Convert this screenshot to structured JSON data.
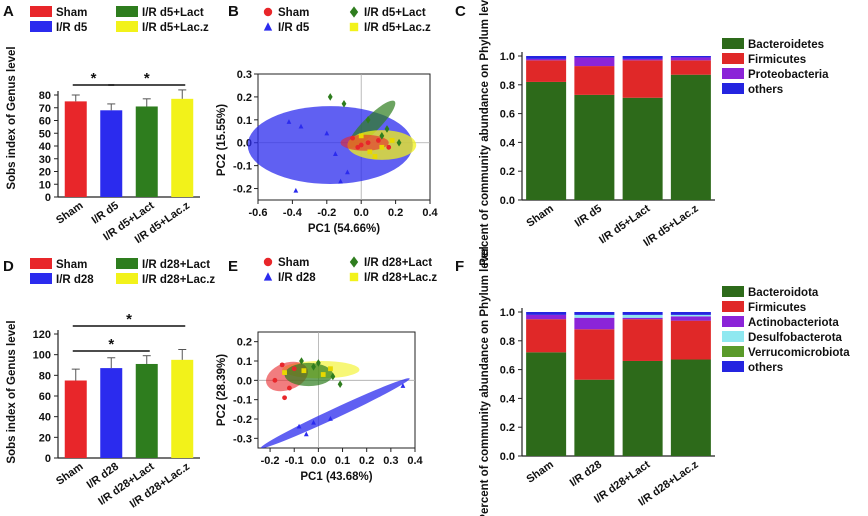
{
  "colors": {
    "sham": "#e8262a",
    "ir": "#2b2bee",
    "lact": "#2e7d1e",
    "lacz": "#f2f21a",
    "bacteroidetes": "#2d6a1a",
    "firmicutes": "#e02828",
    "proteobacteria": "#8b24d8",
    "others": "#2424e0",
    "desulfobacterota": "#8fe8f0",
    "verrucomicrobiota": "#5a9a2a"
  },
  "chart_data": [
    {
      "id": "A",
      "panel_label": "A",
      "type": "bar",
      "ylabel": "Sobs index of Genus level",
      "ylim": [
        0,
        80
      ],
      "yticks": [
        "0",
        "10",
        "20",
        "30",
        "40",
        "50",
        "60",
        "70",
        "80"
      ],
      "categories": [
        "Sham",
        "I/R d5",
        "I/R d5+Lact",
        "I/R d5+Lac.z"
      ],
      "values": [
        75,
        68,
        71,
        77
      ],
      "errors": [
        5,
        5,
        6,
        7
      ],
      "bar_colors": [
        "sham",
        "ir",
        "lact",
        "lacz"
      ],
      "significance": [
        {
          "from": 0,
          "to": 1,
          "label": "*"
        },
        {
          "from": 1,
          "to": 3,
          "label": "*"
        }
      ],
      "legend": [
        {
          "label": "Sham",
          "color": "sham"
        },
        {
          "label": "I/R d5+Lact",
          "color": "lact"
        },
        {
          "label": "I/R d5",
          "color": "ir"
        },
        {
          "label": "I/R d5+Lac.z",
          "color": "lacz"
        }
      ]
    },
    {
      "id": "B",
      "panel_label": "B",
      "type": "scatter",
      "xlabel": "PC1 (54.66%)",
      "ylabel": "PC2 (15.55%)",
      "xlim": [
        -0.6,
        0.4
      ],
      "ylim": [
        -0.25,
        0.3
      ],
      "xticks": [
        "-0.6",
        "-0.4",
        "-0.2",
        "0.0",
        "0.2",
        "0.4"
      ],
      "yticks": [
        "-0.2",
        "-0.1",
        "0.0",
        "0.1",
        "0.2",
        "0.3"
      ],
      "legend": [
        {
          "label": "Sham",
          "color": "sham",
          "marker": "circle"
        },
        {
          "label": "I/R d5+Lact",
          "color": "lact",
          "marker": "diamond"
        },
        {
          "label": "I/R d5",
          "color": "ir",
          "marker": "triangle"
        },
        {
          "label": "I/R d5+Lac.z",
          "color": "lacz",
          "marker": "square"
        }
      ],
      "ellipses": [
        {
          "group": "ir",
          "cx": -0.18,
          "cy": -0.01,
          "rx": 0.48,
          "ry": 0.17,
          "angle": 0,
          "opacity": 0.75
        },
        {
          "group": "lact",
          "cx": 0.06,
          "cy": 0.08,
          "rx": 0.19,
          "ry": 0.035,
          "angle": -45,
          "opacity": 0.7
        },
        {
          "group": "lacz",
          "cx": 0.12,
          "cy": -0.01,
          "rx": 0.2,
          "ry": 0.065,
          "angle": 0,
          "opacity": 0.75
        },
        {
          "group": "sham",
          "cx": 0.02,
          "cy": 0.0,
          "rx": 0.14,
          "ry": 0.035,
          "angle": 0,
          "opacity": 0.6
        }
      ],
      "series": [
        {
          "group": "ir",
          "marker": "triangle",
          "points": [
            [
              -0.42,
              0.09
            ],
            [
              -0.35,
              0.07
            ],
            [
              -0.38,
              -0.21
            ],
            [
              -0.12,
              -0.17
            ],
            [
              -0.08,
              -0.13
            ],
            [
              -0.2,
              0.04
            ],
            [
              -0.15,
              -0.05
            ]
          ]
        },
        {
          "group": "lact",
          "marker": "diamond",
          "points": [
            [
              -0.18,
              0.2
            ],
            [
              -0.1,
              0.17
            ],
            [
              0.04,
              0.1
            ],
            [
              0.15,
              0.06
            ],
            [
              0.22,
              0.0
            ],
            [
              0.12,
              0.03
            ]
          ]
        },
        {
          "group": "lacz",
          "marker": "square",
          "points": [
            [
              0.05,
              -0.04
            ],
            [
              0.12,
              -0.02
            ],
            [
              0.18,
              0.01
            ],
            [
              0.08,
              -0.06
            ],
            [
              0.0,
              0.03
            ]
          ]
        },
        {
          "group": "sham",
          "marker": "circle",
          "points": [
            [
              -0.05,
              0.02
            ],
            [
              -0.02,
              -0.02
            ],
            [
              0.04,
              0.0
            ],
            [
              0.1,
              0.01
            ],
            [
              0.0,
              -0.01
            ],
            [
              0.16,
              -0.02
            ]
          ]
        }
      ]
    },
    {
      "id": "C",
      "panel_label": "C",
      "type": "bar",
      "stacked": true,
      "ylabel": "Percent of community abundance on Phylum level",
      "ylim": [
        0,
        1
      ],
      "yticks": [
        "0.0",
        "0.2",
        "0.4",
        "0.6",
        "0.8",
        "1.0"
      ],
      "categories": [
        "Sham",
        "I/R d5",
        "I/R d5+Lact",
        "I/R d5+Lac.z"
      ],
      "series": [
        {
          "name": "Bacteroidetes",
          "color": "bacteroidetes",
          "values": [
            0.82,
            0.73,
            0.71,
            0.87
          ]
        },
        {
          "name": "Firmicutes",
          "color": "firmicutes",
          "values": [
            0.15,
            0.2,
            0.26,
            0.1
          ]
        },
        {
          "name": "Proteobacteria",
          "color": "proteobacteria",
          "values": [
            0.01,
            0.06,
            0.01,
            0.02
          ]
        },
        {
          "name": "others",
          "color": "others",
          "values": [
            0.02,
            0.01,
            0.02,
            0.01
          ]
        }
      ]
    },
    {
      "id": "D",
      "panel_label": "D",
      "type": "bar",
      "ylabel": "Sobs index of Genus level",
      "ylim": [
        0,
        120
      ],
      "yticks": [
        "0",
        "20",
        "40",
        "60",
        "80",
        "100",
        "120"
      ],
      "categories": [
        "Sham",
        "I/R d28",
        "I/R d28+Lact",
        "I/R d28+Lac.z"
      ],
      "values": [
        75,
        87,
        91,
        95
      ],
      "errors": [
        11,
        10,
        8,
        10
      ],
      "bar_colors": [
        "sham",
        "ir",
        "lact",
        "lacz"
      ],
      "significance": [
        {
          "from": 0,
          "to": 3,
          "label": "*"
        },
        {
          "from": 0,
          "to": 2,
          "label": "*"
        }
      ],
      "legend": [
        {
          "label": "Sham",
          "color": "sham"
        },
        {
          "label": "I/R d28+Lact",
          "color": "lact"
        },
        {
          "label": "I/R d28",
          "color": "ir"
        },
        {
          "label": "I/R d28+Lac.z",
          "color": "lacz"
        }
      ]
    },
    {
      "id": "E",
      "panel_label": "E",
      "type": "scatter",
      "xlabel": "PC1 (43.68%)",
      "ylabel": "PC2 (28.39%)",
      "xlim": [
        -0.25,
        0.4
      ],
      "ylim": [
        -0.35,
        0.25
      ],
      "xticks": [
        "-0.2",
        "-0.1",
        "0.0",
        "0.1",
        "0.2",
        "0.3",
        "0.4"
      ],
      "yticks": [
        "-0.3",
        "-0.2",
        "-0.1",
        "0.0",
        "0.1",
        "0.2"
      ],
      "legend": [
        {
          "label": "Sham",
          "color": "sham",
          "marker": "circle"
        },
        {
          "label": "I/R d28+Lact",
          "color": "lact",
          "marker": "diamond"
        },
        {
          "label": "I/R d28",
          "color": "ir",
          "marker": "triangle"
        },
        {
          "label": "I/R d28+Lac.z",
          "color": "lacz",
          "marker": "square"
        }
      ],
      "ellipses": [
        {
          "group": "ir",
          "cx": 0.07,
          "cy": -0.17,
          "rx": 0.34,
          "ry": 0.025,
          "angle": -25,
          "opacity": 0.75
        },
        {
          "group": "lacz",
          "cx": 0.01,
          "cy": 0.055,
          "rx": 0.16,
          "ry": 0.045,
          "angle": 0,
          "opacity": 0.6
        },
        {
          "group": "sham",
          "cx": -0.13,
          "cy": 0.02,
          "rx": 0.09,
          "ry": 0.07,
          "angle": -20,
          "opacity": 0.6
        },
        {
          "group": "lact",
          "cx": -0.04,
          "cy": 0.03,
          "rx": 0.1,
          "ry": 0.06,
          "angle": 0,
          "opacity": 0.7
        }
      ],
      "series": [
        {
          "group": "ir",
          "marker": "triangle",
          "points": [
            [
              -0.08,
              -0.24
            ],
            [
              -0.05,
              -0.28
            ],
            [
              0.05,
              -0.2
            ],
            [
              0.35,
              -0.03
            ],
            [
              -0.02,
              -0.22
            ]
          ]
        },
        {
          "group": "lact",
          "marker": "diamond",
          "points": [
            [
              -0.02,
              0.07
            ],
            [
              0.06,
              0.02
            ],
            [
              0.09,
              -0.02
            ],
            [
              0.0,
              0.09
            ],
            [
              -0.07,
              0.1
            ]
          ]
        },
        {
          "group": "lacz",
          "marker": "square",
          "points": [
            [
              0.05,
              0.06
            ],
            [
              -0.14,
              0.04
            ],
            [
              0.02,
              0.03
            ],
            [
              -0.06,
              0.05
            ]
          ]
        },
        {
          "group": "sham",
          "marker": "circle",
          "points": [
            [
              -0.15,
              0.08
            ],
            [
              -0.18,
              0.0
            ],
            [
              -0.12,
              -0.04
            ],
            [
              -0.14,
              -0.09
            ],
            [
              -0.1,
              0.06
            ]
          ]
        }
      ]
    },
    {
      "id": "F",
      "panel_label": "F",
      "type": "bar",
      "stacked": true,
      "ylabel": "Percent of community abundance on Phylum level",
      "ylim": [
        0,
        1
      ],
      "yticks": [
        "0.0",
        "0.2",
        "0.4",
        "0.6",
        "0.8",
        "1.0"
      ],
      "categories": [
        "Sham",
        "I/R d28",
        "I/R d28+Lact",
        "I/R d28+Lac.z"
      ],
      "series": [
        {
          "name": "Bacteroidota",
          "color": "bacteroidetes",
          "values": [
            0.72,
            0.53,
            0.66,
            0.67
          ]
        },
        {
          "name": "Firmicutes",
          "color": "firmicutes",
          "values": [
            0.23,
            0.35,
            0.29,
            0.27
          ]
        },
        {
          "name": "Actinobacteriota",
          "color": "proteobacteria",
          "values": [
            0.03,
            0.08,
            0.01,
            0.03
          ]
        },
        {
          "name": "Desulfobacterota",
          "color": "desulfobacterota",
          "values": [
            0.0,
            0.02,
            0.02,
            0.01
          ]
        },
        {
          "name": "Verrucomicrobiota",
          "color": "verrucomicrobiota",
          "values": [
            0.0,
            0.0,
            0.0,
            0.0
          ]
        },
        {
          "name": "others",
          "color": "others",
          "values": [
            0.02,
            0.02,
            0.02,
            0.02
          ]
        }
      ]
    }
  ]
}
